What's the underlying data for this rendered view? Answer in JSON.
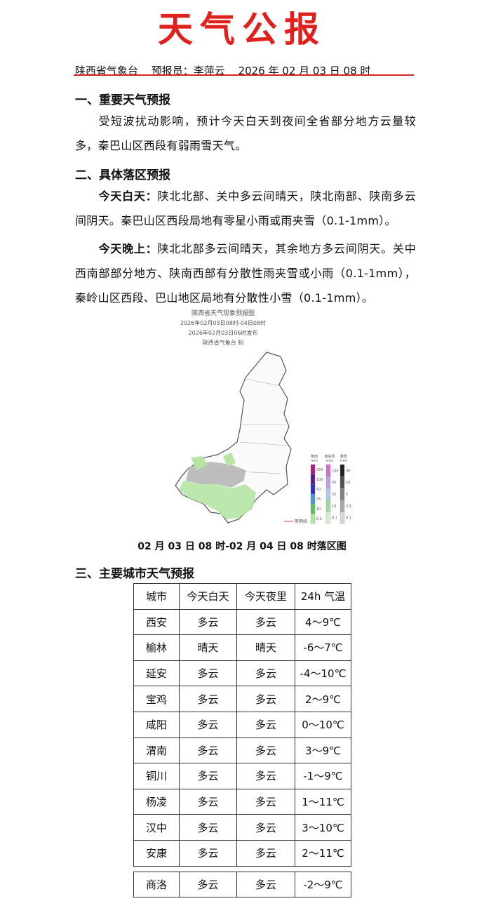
{
  "header": {
    "title": "天气公报",
    "agency": "陕西省气象台",
    "forecaster": "预报员：李萍云",
    "time": "2026 年 02 月 03 日 08 时"
  },
  "sections": [
    {
      "heading": "一、重要天气预报",
      "paragraphs": [
        "受短波扰动影响，预计今天白天到夜间全省部分地方云量较多，秦巴山区西段有弱雨雪天气。"
      ]
    },
    {
      "heading": "二、具体落区预报",
      "paragraphs": [
        {
          "lead": "今天白天：",
          "text": "陕北北部、关中多云间晴天，陕北南部、陕南多云间阴天。秦巴山区西段局地有零星小雨或雨夹雪（0.1-1mm）。"
        },
        {
          "lead": "今天晚上：",
          "text": "陕北北部多云间晴天，其余地方多云间阴天。关中西南部部分地方、陕南西部有分散性雨夹雪或小雨（0.1-1mm），秦岭山区西段、巴山地区局地有分散性小雪（0.1-1mm）。"
        }
      ]
    },
    {
      "heading": "三、主要城市天气预报"
    }
  ],
  "map": {
    "title_lines": [
      "陕西省天气现象预报图",
      "2026年02月03日08时-04日08时",
      "2026年02月03日06时发布",
      "陕西省气象台 制"
    ],
    "caption": "02 月 03 日 08 时-02 月 04 日 08 时落区图",
    "legend": {
      "rain_head": "降雨",
      "sleet_head": "雨夹雪",
      "snow_head": "降雪",
      "unit": "mm",
      "rain": [
        "250",
        "100",
        "50",
        "25",
        "10",
        "0.1"
      ],
      "sleet": [
        "100",
        "50",
        "25",
        "10",
        "0.1"
      ],
      "snow": [
        "30",
        "10",
        "5",
        "2.5",
        "0.1"
      ],
      "isoline": "等雨线"
    }
  },
  "table": {
    "header": [
      "城市",
      "今天白天",
      "今天夜里",
      "24h 气温"
    ],
    "rows": [
      [
        "西安",
        "多云",
        "多云",
        "4～9℃"
      ],
      [
        "榆林",
        "晴天",
        "晴天",
        "-6～7℃"
      ],
      [
        "延安",
        "多云",
        "多云",
        "-4～10℃"
      ],
      [
        "宝鸡",
        "多云",
        "多云",
        "2～9℃"
      ],
      [
        "咸阳",
        "多云",
        "多云",
        "0～10℃"
      ],
      [
        "渭南",
        "多云",
        "多云",
        "3～9℃"
      ],
      [
        "铜川",
        "多云",
        "多云",
        "-1～9℃"
      ],
      [
        "杨凌",
        "多云",
        "多云",
        "1～11℃"
      ],
      [
        "汉中",
        "多云",
        "多云",
        "3～10℃"
      ],
      [
        "安康",
        "多云",
        "多云",
        "2～11℃"
      ],
      [
        "商洛",
        "多云",
        "多云",
        "-2～9℃"
      ]
    ]
  }
}
